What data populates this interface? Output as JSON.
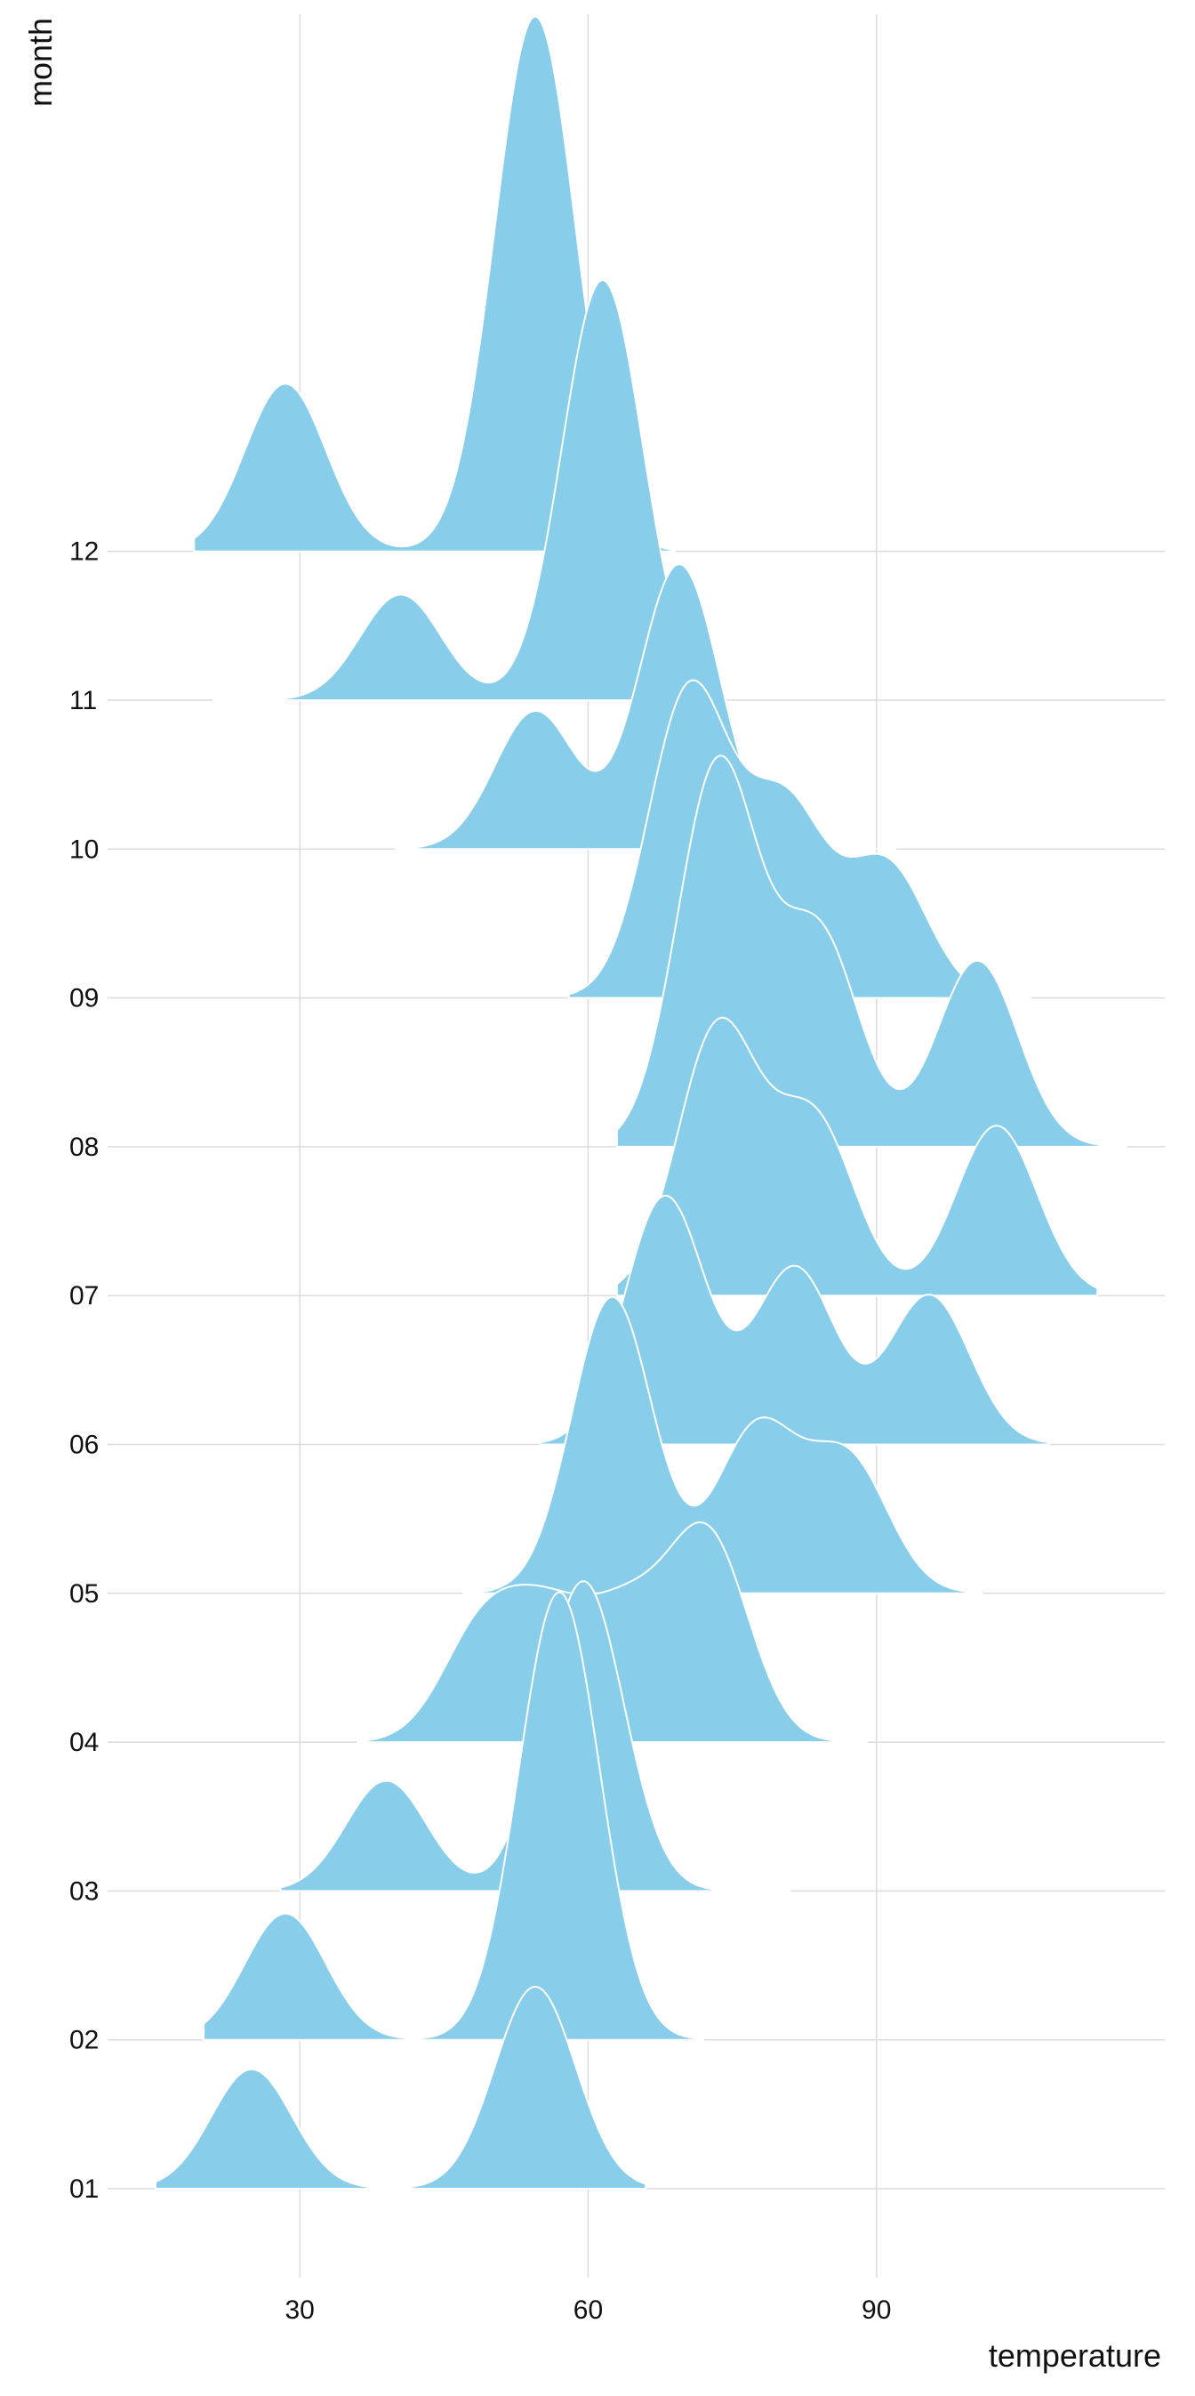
{
  "chart_data": {
    "type": "ridgeline",
    "xlabel": "temperature",
    "ylabel": "month",
    "xlim": [
      10,
      120
    ],
    "x_ticks": [
      30,
      60,
      90
    ],
    "x_tick_labels": [
      "30",
      "60",
      "90"
    ],
    "grid": "vertical major lines only",
    "fill_color": "#88cde9",
    "outline_color": "#ffffff",
    "series": [
      {
        "name": "01",
        "x_range": [
          15,
          66
        ],
        "density_peaks": [
          {
            "x": 25,
            "height": 0.52
          },
          {
            "x": 54.5,
            "height": 0.88
          }
        ]
      },
      {
        "name": "02",
        "x_range": [
          20,
          72
        ],
        "density_peaks": [
          {
            "x": 28.5,
            "height": 0.55
          },
          {
            "x": 57,
            "height": 1.95
          }
        ]
      },
      {
        "name": "03",
        "x_range": [
          28,
          81
        ],
        "density_peaks": [
          {
            "x": 39,
            "height": 0.48
          },
          {
            "x": 59.5,
            "height": 1.35
          }
        ]
      },
      {
        "name": "04",
        "x_range": [
          36,
          89
        ],
        "density_peaks": [
          {
            "x": 49,
            "height": 0.48
          },
          {
            "x": 56,
            "height": 0.47
          },
          {
            "x": 64,
            "height": 0.5
          },
          {
            "x": 72.5,
            "height": 0.88
          }
        ]
      },
      {
        "name": "05",
        "x_range": [
          47,
          101
        ],
        "density_peaks": [
          {
            "x": 62.5,
            "height": 1.29
          },
          {
            "x": 77.5,
            "height": 0.71
          },
          {
            "x": 87,
            "height": 0.58
          }
        ]
      },
      {
        "name": "06",
        "x_range": [
          55,
          108
        ],
        "density_peaks": [
          {
            "x": 68,
            "height": 1.08
          },
          {
            "x": 81.5,
            "height": 0.77
          },
          {
            "x": 95.5,
            "height": 0.65
          }
        ]
      },
      {
        "name": "07",
        "x_range": [
          63,
          113
        ],
        "density_peaks": [
          {
            "x": 73.5,
            "height": 1.16
          },
          {
            "x": 83.5,
            "height": 0.76
          },
          {
            "x": 102.5,
            "height": 0.74
          }
        ]
      },
      {
        "name": "08",
        "x_range": [
          63,
          116
        ],
        "density_peaks": [
          {
            "x": 73.5,
            "height": 1.66
          },
          {
            "x": 84,
            "height": 0.92
          },
          {
            "x": 100.5,
            "height": 0.81
          }
        ]
      },
      {
        "name": "09",
        "x_range": [
          58,
          106
        ],
        "density_peaks": [
          {
            "x": 70.5,
            "height": 1.33
          },
          {
            "x": 80.5,
            "height": 0.82
          },
          {
            "x": 91,
            "height": 0.58
          }
        ]
      },
      {
        "name": "10",
        "x_range": [
          40,
          92
        ],
        "density_peaks": [
          {
            "x": 54.5,
            "height": 0.6
          },
          {
            "x": 69.5,
            "height": 1.24
          }
        ]
      },
      {
        "name": "11",
        "x_range": [
          21,
          74
        ],
        "density_peaks": [
          {
            "x": 40.5,
            "height": 0.46
          },
          {
            "x": 61.5,
            "height": 1.83
          }
        ]
      },
      {
        "name": "12",
        "x_range": [
          19,
          69
        ],
        "density_peaks": [
          {
            "x": 28.5,
            "height": 0.73
          },
          {
            "x": 54.5,
            "height": 2.33
          }
        ]
      }
    ]
  }
}
